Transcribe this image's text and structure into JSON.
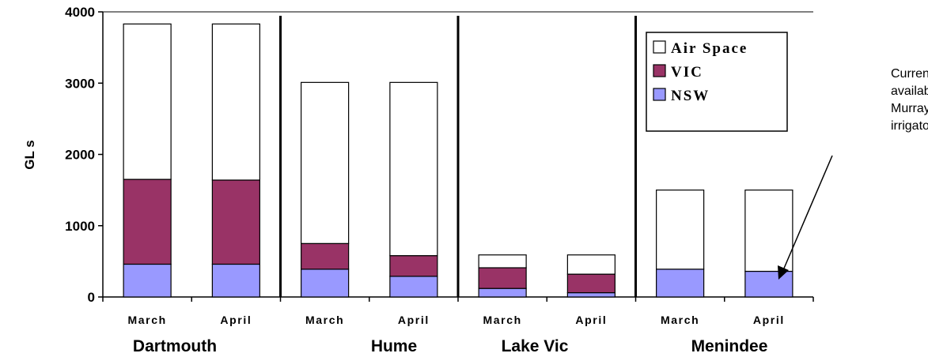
{
  "chart_data": {
    "type": "bar",
    "stacked": true,
    "ylabel": "GL s",
    "ylim": [
      0,
      4000
    ],
    "yticks": [
      0,
      1000,
      2000,
      3000,
      4000
    ],
    "grid": false,
    "legend_position": "top-right",
    "categories": [
      "March",
      "April",
      "March",
      "April",
      "March",
      "April",
      "March",
      "April"
    ],
    "groups": [
      "Dartmouth",
      "Hume",
      "Lake Vic",
      "Menindee"
    ],
    "series": [
      {
        "name": "NSW",
        "color": "#9999ff",
        "values": [
          460,
          460,
          390,
          290,
          120,
          60,
          390,
          360
        ]
      },
      {
        "name": "VIC",
        "color": "#993366",
        "values": [
          1190,
          1180,
          360,
          290,
          290,
          260,
          0,
          0
        ]
      },
      {
        "name": "Air Space",
        "color": "#ffffff",
        "values": [
          2180,
          2190,
          2260,
          2430,
          180,
          270,
          1110,
          1140
        ]
      }
    ],
    "annotation": {
      "lines": [
        "Currently Not",
        "available for",
        "Murray",
        "irrigators"
      ]
    }
  }
}
